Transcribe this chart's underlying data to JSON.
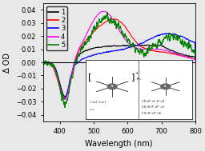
{
  "title": "",
  "xlabel": "Wavelength (nm)",
  "ylabel": "Δ OD",
  "xlim": [
    350,
    800
  ],
  "ylim": [
    -0.045,
    0.045
  ],
  "yticks": [
    -0.04,
    -0.03,
    -0.02,
    -0.01,
    0.0,
    0.01,
    0.02,
    0.03,
    0.04
  ],
  "xticks": [
    400,
    500,
    600,
    700,
    800
  ],
  "legend_labels": [
    "1",
    "2",
    "3",
    "4",
    "5"
  ],
  "colors": [
    "black",
    "red",
    "blue",
    "magenta",
    "green"
  ],
  "background_color": "#e8e8e8",
  "seed": 42
}
